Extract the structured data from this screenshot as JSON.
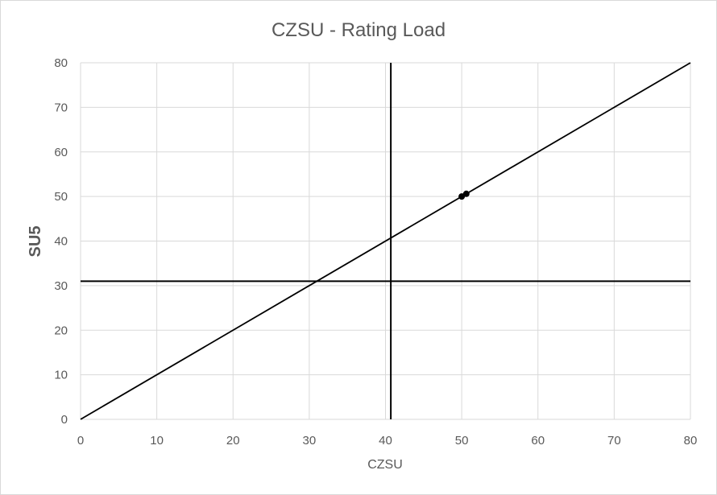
{
  "chart_data": {
    "type": "scatter",
    "title": "CZSU - Rating Load",
    "xlabel": "CZSU",
    "ylabel": "SU5",
    "xlim": [
      0,
      80
    ],
    "ylim": [
      0,
      80
    ],
    "x_ticks": [
      "0",
      "10",
      "20",
      "30",
      "40",
      "50",
      "60",
      "70",
      "80"
    ],
    "y_ticks": [
      "0",
      "10",
      "20",
      "30",
      "40",
      "50",
      "60",
      "70",
      "80"
    ],
    "grid": true,
    "legend": "none",
    "series": [
      {
        "type": "line",
        "x": [
          0,
          80
        ],
        "y": [
          0,
          80
        ]
      },
      {
        "type": "scatter",
        "x": [
          50.0,
          50.6
        ],
        "y": [
          50.0,
          50.6
        ]
      }
    ],
    "reference_lines": [
      {
        "orientation": "vertical",
        "x": 40.7
      },
      {
        "orientation": "horizontal",
        "y": 31.0
      }
    ],
    "colors": {
      "line": "#000000",
      "points": "#000000",
      "grid": "#d9d9d9",
      "text": "#595959"
    }
  }
}
